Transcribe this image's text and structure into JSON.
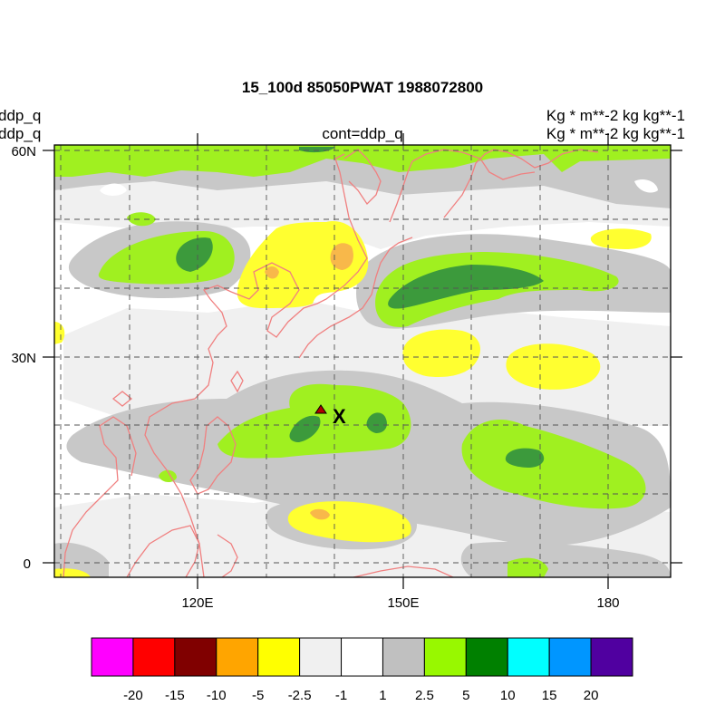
{
  "title": "15_100d 85050PWAT  1988072800",
  "left_labels": [
    "ddp_q",
    "ddp_q"
  ],
  "center_label": "cont=ddp_q",
  "right_labels": [
    "Kg  * m**-2 kg kg**-1",
    "Kg  * m**-2 kg kg**-1"
  ],
  "map": {
    "lat_ticks": [
      {
        "label": "60N",
        "value": 60
      },
      {
        "label": "30N",
        "value": 30
      },
      {
        "label": "0",
        "value": 0
      }
    ],
    "lon_ticks": [
      {
        "label": "120E",
        "value": 120
      },
      {
        "label": "150E",
        "value": 150
      },
      {
        "label": "180",
        "value": 180
      }
    ],
    "lon_range": [
      100,
      188
    ],
    "lat_range": [
      -2,
      61
    ],
    "marker_label": "X",
    "colors": {
      "coast": "#f08080",
      "grid": "#555555",
      "gray": "#c8c8c8",
      "lightgray": "#f0f0f0",
      "lime": "#a0f020",
      "green": "#3c9a3c",
      "yellow": "#ffff30",
      "orange": "#f8b84a",
      "marker": "#b00000"
    }
  },
  "colorbar": {
    "colors": [
      "#ff00ff",
      "#ff0000",
      "#800000",
      "#ffa500",
      "#ffff00",
      "#f0f0f0",
      "#ffffff",
      "#c0c0c0",
      "#98f800",
      "#008000",
      "#00ffff",
      "#0096ff",
      "#5000a0"
    ],
    "labels": [
      "-20",
      "-15",
      "-10",
      "-5",
      "-2.5",
      "-1",
      "1",
      "2.5",
      "5",
      "10",
      "15",
      "20"
    ]
  }
}
